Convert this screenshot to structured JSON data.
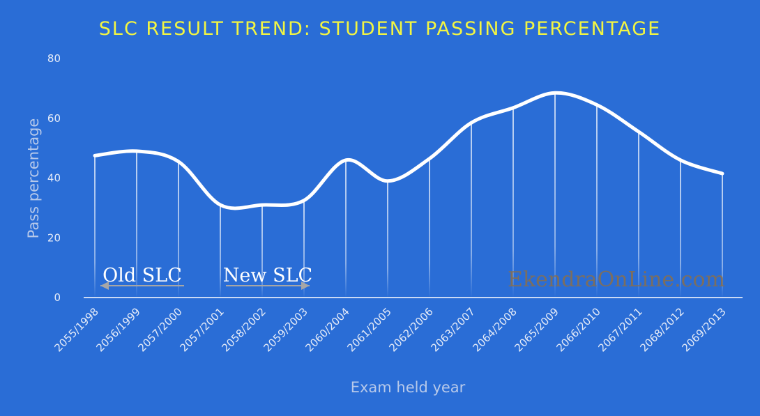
{
  "chart_data": {
    "type": "line",
    "title": "SLC RESULT TREND: STUDENT PASSING PERCENTAGE",
    "xlabel": "Exam held year",
    "ylabel": "Pass percentage",
    "ylim": [
      0,
      80
    ],
    "yticks": [
      "0",
      "20",
      "40",
      "60",
      "80"
    ],
    "grid": "vertical drop lines",
    "smooth": true,
    "categories": [
      "2055/1998",
      "2056/1999",
      "2057/2000",
      "2057/2001",
      "2058/2002",
      "2059/2003",
      "2060/2004",
      "2061/2005",
      "2062/2006",
      "2063/2007",
      "2064/2008",
      "2065/2009",
      "2066/2010",
      "2067/2011",
      "2068/2012",
      "2069/2013"
    ],
    "values": [
      47.5,
      49,
      45.5,
      31,
      31,
      32.5,
      46,
      39,
      46.5,
      58.5,
      63.5,
      68.5,
      64.5,
      55.5,
      46,
      41.5
    ],
    "annotations": [
      {
        "text": "Old SLC",
        "arrow": "left",
        "from_index": 0,
        "to_index": 2
      },
      {
        "text": "New SLC",
        "arrow": "right",
        "from_index": 3,
        "to_index": 5
      }
    ],
    "colors": {
      "background": "#2a6dd6",
      "line": "#ffffff",
      "title": "#f2f542"
    }
  },
  "watermark": "EkendraOnLine.com"
}
